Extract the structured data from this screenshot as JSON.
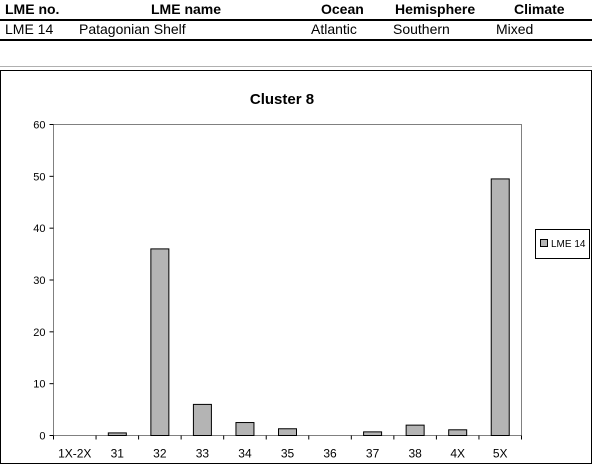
{
  "table": {
    "headers": [
      "LME no.",
      "LME name",
      "Ocean",
      "Hemisphere",
      "Climate"
    ],
    "row": [
      "LME 14",
      "Patagonian Shelf",
      "Atlantic",
      "Southern",
      "Mixed"
    ]
  },
  "chart_data": {
    "type": "bar",
    "title": "Cluster 8",
    "categories": [
      "1X-2X",
      "31",
      "32",
      "33",
      "34",
      "35",
      "36",
      "37",
      "38",
      "4X",
      "5X"
    ],
    "series": [
      {
        "name": "LME 14",
        "values": [
          0,
          0.5,
          36,
          6,
          2.5,
          1.3,
          0,
          0.7,
          2,
          1.1,
          49.5
        ]
      }
    ],
    "ylim": [
      0,
      60
    ],
    "yticks": [
      "0",
      "10",
      "20",
      "30",
      "40",
      "50",
      "60"
    ],
    "grid": false,
    "legend": "right",
    "bar_color": "#b4b4b4"
  }
}
